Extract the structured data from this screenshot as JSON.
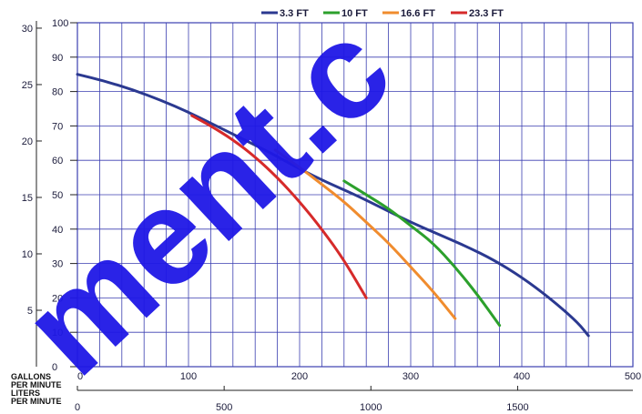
{
  "chart_data": {
    "type": "line",
    "title": "",
    "legend": {
      "placement": "top-right",
      "entries": [
        {
          "label": "3.3 FT",
          "color": "#2b3990"
        },
        {
          "label": "10 FT",
          "color": "#2ca02c"
        },
        {
          "label": "16.6 FT",
          "color": "#f08c2e"
        },
        {
          "label": "23.3 FT",
          "color": "#d62a2a"
        }
      ]
    },
    "x_axis": {
      "ticks": [
        "0",
        "100",
        "200",
        "300",
        "400",
        "500"
      ],
      "range": [
        0,
        500
      ],
      "label_lines": [
        "GALLONS",
        "PER MINUTE"
      ]
    },
    "x2_axis": {
      "ticks": [
        "0",
        "500",
        "1000",
        "1500"
      ],
      "range": [
        0,
        1892.7
      ],
      "label_lines": [
        "LITERS",
        "PER MINUTE"
      ]
    },
    "y_axis": {
      "ticks": [
        "0",
        "10",
        "20",
        "30",
        "40",
        "50",
        "60",
        "70",
        "80",
        "90",
        "100"
      ],
      "range": [
        0,
        100
      ]
    },
    "y2_axis": {
      "ticks": [
        "5",
        "10",
        "15",
        "20",
        "25",
        "30"
      ],
      "range": [
        0,
        30.48
      ]
    },
    "grid": true,
    "series": [
      {
        "name": "3.3 FT",
        "color": "#2b3990",
        "x": [
          0,
          25,
          50,
          75,
          100,
          125,
          150,
          175,
          200,
          225,
          250,
          275,
          300,
          325,
          350,
          375,
          400,
          425,
          450,
          460
        ],
        "y": [
          85,
          83,
          80.5,
          77.5,
          74,
          70,
          66,
          62,
          57.5,
          53.5,
          50,
          46,
          42,
          38.5,
          35,
          31,
          26,
          20,
          13,
          9
        ]
      },
      {
        "name": "10 FT",
        "color": "#2ca02c",
        "x": [
          240,
          260,
          280,
          300,
          320,
          340,
          360,
          380
        ],
        "y": [
          54,
          50,
          46,
          41,
          36,
          29,
          21,
          12
        ]
      },
      {
        "name": "16.6 FT",
        "color": "#f08c2e",
        "x": [
          178,
          200,
          220,
          240,
          260,
          280,
          300,
          320,
          340
        ],
        "y": [
          63,
          58,
          53,
          48,
          42,
          36,
          29,
          22,
          14
        ]
      },
      {
        "name": "23.3 FT",
        "color": "#d62a2a",
        "x": [
          103,
          120,
          140,
          160,
          180,
          200,
          220,
          240,
          260
        ],
        "y": [
          73,
          70,
          66,
          61,
          55,
          48,
          40,
          31,
          20
        ]
      }
    ]
  },
  "watermark": "ment.c"
}
